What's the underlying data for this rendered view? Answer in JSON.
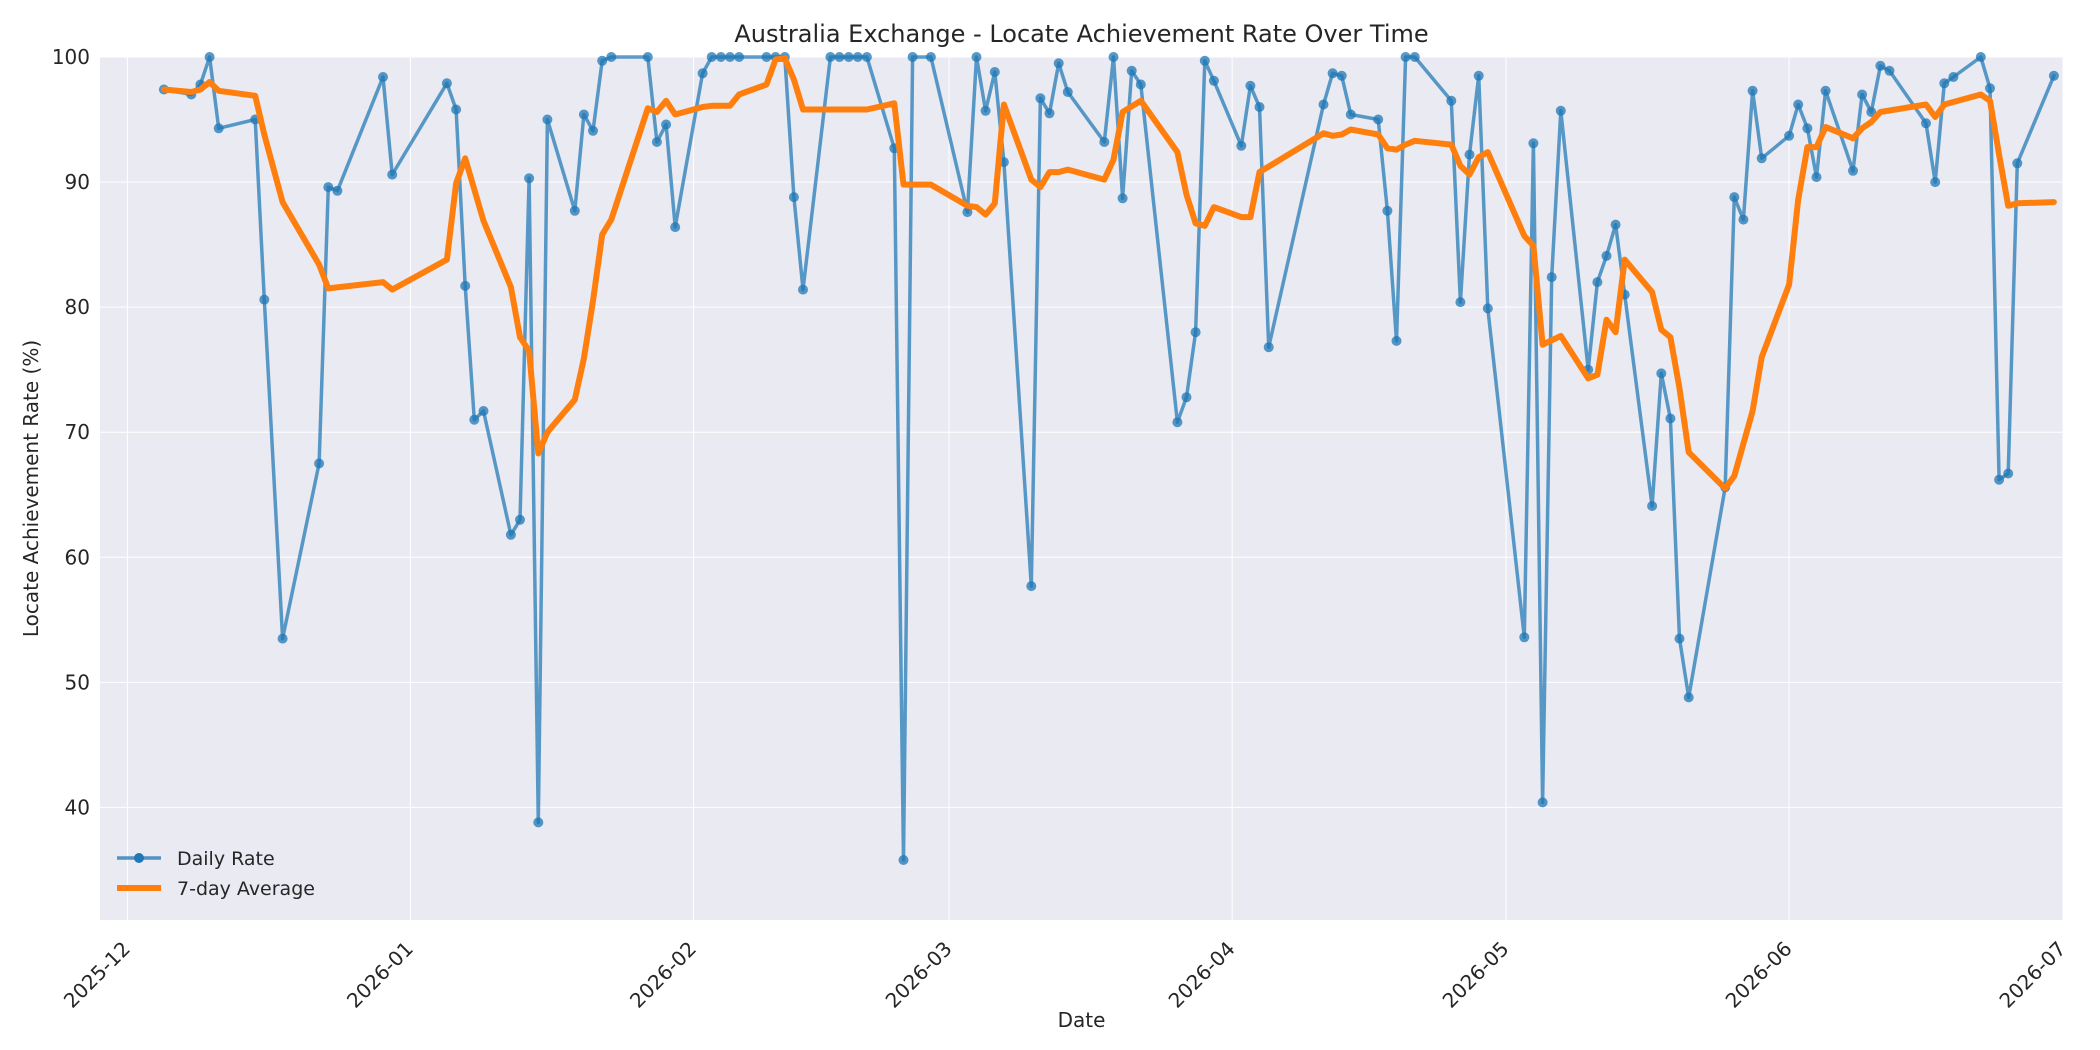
{
  "chart_data": {
    "type": "line",
    "title": "Australia Exchange - Locate Achievement Rate Over Time",
    "xlabel": "Date",
    "ylabel": "Locate Achievement Rate (%)",
    "xlim": [
      "2025-11-28",
      "2026-07-01"
    ],
    "ylim": [
      31,
      100
    ],
    "x_ticks": [
      "2025-12-01",
      "2026-01-01",
      "2026-02-01",
      "2026-03-01",
      "2026-04-01",
      "2026-05-01",
      "2026-06-01",
      "2026-07-01"
    ],
    "x_tick_labels": [
      "2025-12",
      "2026-01",
      "2026-02",
      "2026-03",
      "2026-04",
      "2026-05",
      "2026-06",
      "2026-07"
    ],
    "y_ticks": [
      40,
      50,
      60,
      70,
      80,
      90,
      100
    ],
    "grid": true,
    "legend_position": "lower-left",
    "colors": {
      "daily": "#1f77b4",
      "avg": "#ff7f0e",
      "plot_bg": "#eaeaf2",
      "grid": "#ffffff"
    },
    "series": [
      {
        "name": "Daily Rate",
        "style": "line-markers",
        "points": [
          [
            "2025-12-05",
            97.4
          ],
          [
            "2025-12-08",
            97.0
          ],
          [
            "2025-12-09",
            97.8
          ],
          [
            "2025-12-10",
            100.0
          ],
          [
            "2025-12-11",
            94.3
          ],
          [
            "2025-12-15",
            95.0
          ],
          [
            "2025-12-16",
            80.6
          ],
          [
            "2025-12-18",
            53.5
          ],
          [
            "2025-12-22",
            67.5
          ],
          [
            "2025-12-23",
            89.6
          ],
          [
            "2025-12-24",
            89.3
          ],
          [
            "2025-12-29",
            98.4
          ],
          [
            "2025-12-30",
            90.6
          ],
          [
            "2026-01-05",
            97.9
          ],
          [
            "2026-01-06",
            95.8
          ],
          [
            "2026-01-07",
            81.7
          ],
          [
            "2026-01-08",
            71.0
          ],
          [
            "2026-01-09",
            71.7
          ],
          [
            "2026-01-12",
            61.8
          ],
          [
            "2026-01-13",
            63.0
          ],
          [
            "2026-01-14",
            90.3
          ],
          [
            "2026-01-15",
            38.8
          ],
          [
            "2026-01-16",
            95.0
          ],
          [
            "2026-01-19",
            87.7
          ],
          [
            "2026-01-20",
            95.4
          ],
          [
            "2026-01-21",
            94.1
          ],
          [
            "2026-01-22",
            99.7
          ],
          [
            "2026-01-23",
            100.0
          ],
          [
            "2026-01-27",
            100.0
          ],
          [
            "2026-01-28",
            93.2
          ],
          [
            "2026-01-29",
            94.6
          ],
          [
            "2026-01-30",
            86.4
          ],
          [
            "2026-02-02",
            98.7
          ],
          [
            "2026-02-03",
            100.0
          ],
          [
            "2026-02-04",
            100.0
          ],
          [
            "2026-02-05",
            100.0
          ],
          [
            "2026-02-06",
            100.0
          ],
          [
            "2026-02-09",
            100.0
          ],
          [
            "2026-02-10",
            100.0
          ],
          [
            "2026-02-11",
            100.0
          ],
          [
            "2026-02-12",
            88.8
          ],
          [
            "2026-02-13",
            81.4
          ],
          [
            "2026-02-16",
            100.0
          ],
          [
            "2026-02-17",
            100.0
          ],
          [
            "2026-02-18",
            100.0
          ],
          [
            "2026-02-19",
            100.0
          ],
          [
            "2026-02-20",
            100.0
          ],
          [
            "2026-02-23",
            92.7
          ],
          [
            "2026-02-24",
            35.8
          ],
          [
            "2026-02-25",
            100.0
          ],
          [
            "2026-02-27",
            100.0
          ],
          [
            "2026-03-03",
            87.6
          ],
          [
            "2026-03-04",
            100.0
          ],
          [
            "2026-03-05",
            95.7
          ],
          [
            "2026-03-06",
            98.8
          ],
          [
            "2026-03-07",
            91.6
          ],
          [
            "2026-03-10",
            57.7
          ],
          [
            "2026-03-11",
            96.7
          ],
          [
            "2026-03-12",
            95.5
          ],
          [
            "2026-03-13",
            99.5
          ],
          [
            "2026-03-14",
            97.2
          ],
          [
            "2026-03-18",
            93.2
          ],
          [
            "2026-03-19",
            100.0
          ],
          [
            "2026-03-20",
            88.7
          ],
          [
            "2026-03-21",
            98.9
          ],
          [
            "2026-03-22",
            97.8
          ],
          [
            "2026-03-26",
            70.8
          ],
          [
            "2026-03-27",
            72.8
          ],
          [
            "2026-03-28",
            78.0
          ],
          [
            "2026-03-29",
            99.7
          ],
          [
            "2026-03-30",
            98.1
          ],
          [
            "2026-04-02",
            92.9
          ],
          [
            "2026-04-03",
            97.7
          ],
          [
            "2026-04-04",
            96.0
          ],
          [
            "2026-04-05",
            76.8
          ],
          [
            "2026-04-11",
            96.2
          ],
          [
            "2026-04-12",
            98.7
          ],
          [
            "2026-04-13",
            98.5
          ],
          [
            "2026-04-14",
            95.4
          ],
          [
            "2026-04-17",
            95.0
          ],
          [
            "2026-04-18",
            87.7
          ],
          [
            "2026-04-19",
            77.3
          ],
          [
            "2026-04-20",
            100.0
          ],
          [
            "2026-04-21",
            100.0
          ],
          [
            "2026-04-25",
            96.5
          ],
          [
            "2026-04-26",
            80.4
          ],
          [
            "2026-04-27",
            92.2
          ],
          [
            "2026-04-28",
            98.5
          ],
          [
            "2026-04-29",
            79.9
          ],
          [
            "2026-05-03",
            53.6
          ],
          [
            "2026-05-04",
            93.1
          ],
          [
            "2026-05-05",
            40.4
          ],
          [
            "2026-05-06",
            82.4
          ],
          [
            "2026-05-07",
            95.7
          ],
          [
            "2026-05-10",
            75.0
          ],
          [
            "2026-05-11",
            82.0
          ],
          [
            "2026-05-12",
            84.1
          ],
          [
            "2026-05-13",
            86.6
          ],
          [
            "2026-05-14",
            81.0
          ],
          [
            "2026-05-17",
            64.1
          ],
          [
            "2026-05-18",
            74.7
          ],
          [
            "2026-05-19",
            71.1
          ],
          [
            "2026-05-20",
            53.5
          ],
          [
            "2026-05-21",
            48.8
          ],
          [
            "2026-05-25",
            65.6
          ],
          [
            "2026-05-26",
            88.8
          ],
          [
            "2026-05-27",
            87.0
          ],
          [
            "2026-05-28",
            97.3
          ],
          [
            "2026-05-29",
            91.9
          ],
          [
            "2026-06-01",
            93.7
          ],
          [
            "2026-06-02",
            96.2
          ],
          [
            "2026-06-03",
            94.3
          ],
          [
            "2026-06-04",
            90.4
          ],
          [
            "2026-06-05",
            97.3
          ],
          [
            "2026-06-08",
            90.9
          ],
          [
            "2026-06-09",
            97.0
          ],
          [
            "2026-06-10",
            95.6
          ],
          [
            "2026-06-11",
            99.3
          ],
          [
            "2026-06-12",
            98.9
          ],
          [
            "2026-06-16",
            94.7
          ],
          [
            "2026-06-17",
            90.0
          ],
          [
            "2026-06-18",
            97.9
          ],
          [
            "2026-06-19",
            98.4
          ],
          [
            "2026-06-22",
            100.0
          ],
          [
            "2026-06-23",
            97.5
          ],
          [
            "2026-06-24",
            66.2
          ],
          [
            "2026-06-25",
            66.7
          ],
          [
            "2026-06-26",
            91.5
          ],
          [
            "2026-06-30",
            98.5
          ]
        ]
      },
      {
        "name": "7-day Average",
        "style": "line",
        "points": [
          [
            "2025-12-05",
            97.4
          ],
          [
            "2025-12-08",
            97.2
          ],
          [
            "2025-12-09",
            97.4
          ],
          [
            "2025-12-10",
            98.0
          ],
          [
            "2025-12-11",
            97.3
          ],
          [
            "2025-12-15",
            96.9
          ],
          [
            "2025-12-16",
            93.8
          ],
          [
            "2025-12-18",
            88.4
          ],
          [
            "2025-12-22",
            83.4
          ],
          [
            "2025-12-23",
            81.5
          ],
          [
            "2025-12-29",
            82.0
          ],
          [
            "2025-12-30",
            81.4
          ],
          [
            "2026-01-05",
            83.8
          ],
          [
            "2026-01-06",
            89.9
          ],
          [
            "2026-01-07",
            91.9
          ],
          [
            "2026-01-09",
            86.9
          ],
          [
            "2026-01-12",
            81.6
          ],
          [
            "2026-01-13",
            77.6
          ],
          [
            "2026-01-14",
            76.5
          ],
          [
            "2026-01-15",
            68.3
          ],
          [
            "2026-01-16",
            70.0
          ],
          [
            "2026-01-19",
            72.6
          ],
          [
            "2026-01-20",
            75.9
          ],
          [
            "2026-01-21",
            80.5
          ],
          [
            "2026-01-22",
            85.8
          ],
          [
            "2026-01-23",
            87.0
          ],
          [
            "2026-01-27",
            95.9
          ],
          [
            "2026-01-28",
            95.6
          ],
          [
            "2026-01-29",
            96.5
          ],
          [
            "2026-01-30",
            95.4
          ],
          [
            "2026-02-02",
            96.0
          ],
          [
            "2026-02-03",
            96.1
          ],
          [
            "2026-02-05",
            96.1
          ],
          [
            "2026-02-06",
            97.0
          ],
          [
            "2026-02-09",
            97.8
          ],
          [
            "2026-02-10",
            99.8
          ],
          [
            "2026-02-11",
            99.9
          ],
          [
            "2026-02-12",
            98.2
          ],
          [
            "2026-02-13",
            95.8
          ],
          [
            "2026-02-20",
            95.8
          ],
          [
            "2026-02-23",
            96.3
          ],
          [
            "2026-02-24",
            89.8
          ],
          [
            "2026-02-27",
            89.8
          ],
          [
            "2026-03-03",
            88.1
          ],
          [
            "2026-03-04",
            88.0
          ],
          [
            "2026-03-05",
            87.4
          ],
          [
            "2026-03-06",
            88.3
          ],
          [
            "2026-03-07",
            96.2
          ],
          [
            "2026-03-10",
            90.2
          ],
          [
            "2026-03-11",
            89.6
          ],
          [
            "2026-03-12",
            90.8
          ],
          [
            "2026-03-13",
            90.8
          ],
          [
            "2026-03-14",
            91.0
          ],
          [
            "2026-03-18",
            90.2
          ],
          [
            "2026-03-19",
            91.8
          ],
          [
            "2026-03-20",
            95.6
          ],
          [
            "2026-03-22",
            96.5
          ],
          [
            "2026-03-26",
            92.4
          ],
          [
            "2026-03-27",
            89.0
          ],
          [
            "2026-03-28",
            86.7
          ],
          [
            "2026-03-29",
            86.5
          ],
          [
            "2026-03-30",
            88.0
          ],
          [
            "2026-04-02",
            87.2
          ],
          [
            "2026-04-03",
            87.2
          ],
          [
            "2026-04-04",
            90.8
          ],
          [
            "2026-04-11",
            93.9
          ],
          [
            "2026-04-12",
            93.7
          ],
          [
            "2026-04-13",
            93.8
          ],
          [
            "2026-04-14",
            94.2
          ],
          [
            "2026-04-17",
            93.8
          ],
          [
            "2026-04-18",
            92.7
          ],
          [
            "2026-04-19",
            92.6
          ],
          [
            "2026-04-20",
            93.0
          ],
          [
            "2026-04-21",
            93.3
          ],
          [
            "2026-04-25",
            93.0
          ],
          [
            "2026-04-26",
            91.3
          ],
          [
            "2026-04-27",
            90.6
          ],
          [
            "2026-04-28",
            92.0
          ],
          [
            "2026-04-29",
            92.4
          ],
          [
            "2026-05-03",
            85.7
          ],
          [
            "2026-05-04",
            84.9
          ],
          [
            "2026-05-05",
            77.0
          ],
          [
            "2026-05-07",
            77.7
          ],
          [
            "2026-05-10",
            74.3
          ],
          [
            "2026-05-11",
            74.6
          ],
          [
            "2026-05-12",
            79.0
          ],
          [
            "2026-05-13",
            78.0
          ],
          [
            "2026-05-14",
            83.8
          ],
          [
            "2026-05-17",
            81.2
          ],
          [
            "2026-05-18",
            78.2
          ],
          [
            "2026-05-19",
            77.6
          ],
          [
            "2026-05-20",
            73.5
          ],
          [
            "2026-05-21",
            68.4
          ],
          [
            "2026-05-25",
            65.5
          ],
          [
            "2026-05-26",
            66.5
          ],
          [
            "2026-05-28",
            71.7
          ],
          [
            "2026-05-29",
            76.0
          ],
          [
            "2026-06-01",
            81.8
          ],
          [
            "2026-06-02",
            88.6
          ],
          [
            "2026-06-03",
            92.8
          ],
          [
            "2026-06-04",
            92.8
          ],
          [
            "2026-06-05",
            94.4
          ],
          [
            "2026-06-08",
            93.5
          ],
          [
            "2026-06-09",
            94.3
          ],
          [
            "2026-06-10",
            94.8
          ],
          [
            "2026-06-11",
            95.6
          ],
          [
            "2026-06-16",
            96.2
          ],
          [
            "2026-06-17",
            95.2
          ],
          [
            "2026-06-18",
            96.2
          ],
          [
            "2026-06-22",
            97.0
          ],
          [
            "2026-06-23",
            96.5
          ],
          [
            "2026-06-24",
            92.2
          ],
          [
            "2026-06-25",
            88.1
          ],
          [
            "2026-06-26",
            88.3
          ],
          [
            "2026-06-30",
            88.4
          ]
        ]
      }
    ]
  }
}
